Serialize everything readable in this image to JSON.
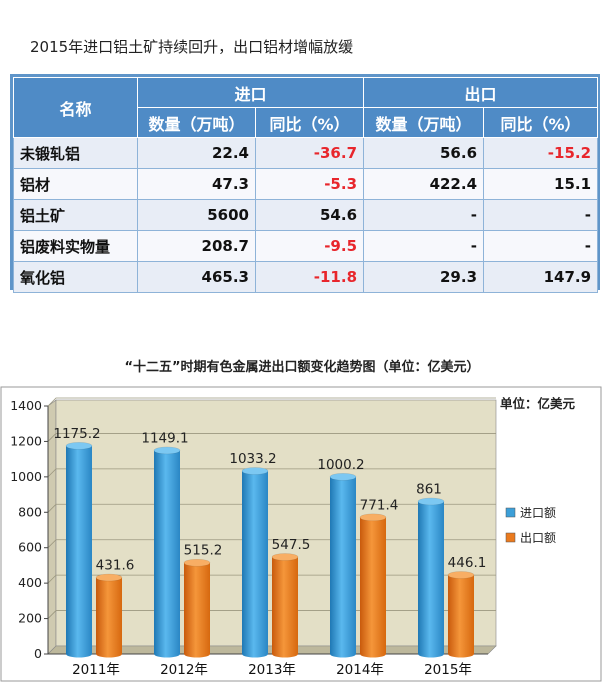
{
  "heading1": "2015年进口铝土矿持续回升，出口铝材增幅放缓",
  "table": {
    "headers": {
      "name": "名称",
      "import_group": "进口",
      "export_group": "出口",
      "import_qty": "数量（万吨）",
      "import_yoy": "同比（%）",
      "export_qty": "数量（万吨）",
      "export_yoy": "同比（%）"
    },
    "rows": [
      {
        "name": "未锻轧铝",
        "import_qty": "22.4",
        "import_yoy": "-36.7",
        "export_qty": "56.6",
        "export_yoy": "-15.2"
      },
      {
        "name": "铝材",
        "import_qty": "47.3",
        "import_yoy": "-5.3",
        "export_qty": "422.4",
        "export_yoy": "15.1"
      },
      {
        "name": "铝土矿",
        "import_qty": "5600",
        "import_yoy": "54.6",
        "export_qty": "-",
        "export_yoy": "-"
      },
      {
        "name": "铝废料实物量",
        "import_qty": "208.7",
        "import_yoy": "-9.5",
        "export_qty": "-",
        "export_yoy": "-"
      },
      {
        "name": "氧化铝",
        "import_qty": "465.3",
        "import_yoy": "-11.8",
        "export_qty": "29.3",
        "export_yoy": "147.9"
      }
    ]
  },
  "heading2": "“十二五”时期有色金属进出口额变化趋势图（单位：亿美元）",
  "chart_data": {
    "type": "bar",
    "title": "“十二五”时期有色金属进出口额变化趋势图（单位：亿美元）",
    "unit_label": "单位：亿美元",
    "categories": [
      "2011年",
      "2012年",
      "2013年",
      "2014年",
      "2015年"
    ],
    "series": [
      {
        "name": "进口额",
        "values": [
          1175.2,
          1149.1,
          1033.2,
          1000.2,
          861
        ],
        "labels": [
          "1175.2",
          "1149.1",
          "1033.2",
          "1000.2",
          "861"
        ]
      },
      {
        "name": "出口额",
        "values": [
          431.6,
          515.2,
          547.5,
          771.4,
          446.1
        ],
        "labels": [
          "431.6",
          "515.2",
          "547.5",
          "771.4",
          "446.1"
        ]
      }
    ],
    "ylim": [
      0,
      1400
    ],
    "yticks": [
      "0",
      "200",
      "400",
      "600",
      "800",
      "1000",
      "1200",
      "1400"
    ],
    "grid": true,
    "legend_position": "right",
    "colors": {
      "import": "#3c9fd8",
      "export": "#ea7a1e",
      "plot_bg": "#e3dfc6",
      "table_header": "#4f8bc6",
      "negative": "#e8262c"
    }
  }
}
